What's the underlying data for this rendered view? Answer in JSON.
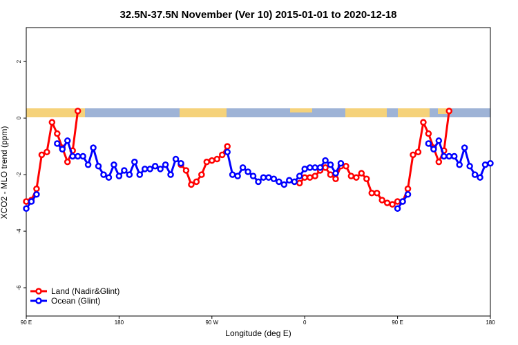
{
  "chart_data": {
    "type": "line",
    "title": "32.5N-37.5N November (Ver 10)   2015-01-01 to 2020-12-18",
    "x_label": "Longitude (deg E)",
    "y_label": "XCO2 - MLO trend (ppm)",
    "x": [
      90,
      95,
      100,
      105,
      110,
      115,
      120,
      125,
      130,
      135,
      140,
      145,
      150,
      155,
      160,
      165,
      170,
      175,
      180,
      185,
      190,
      195,
      200,
      205,
      210,
      215,
      220,
      225,
      230,
      235,
      240,
      245,
      250,
      255,
      260,
      265,
      270,
      275,
      280,
      285,
      290,
      295,
      300,
      305,
      310,
      315,
      320,
      325,
      330,
      335,
      340,
      345,
      350,
      355,
      360,
      365,
      370,
      375,
      380,
      385,
      390,
      395,
      400,
      405,
      410,
      415,
      420,
      425,
      430,
      435,
      440,
      445,
      450,
      455,
      460,
      465,
      470,
      475,
      480,
      485,
      490,
      495,
      500,
      505,
      510,
      515,
      520,
      525,
      530,
      535,
      540
    ],
    "series": [
      {
        "name": "Land (Nadir&Glint)",
        "color": "#ff0000",
        "values": [
          -2.95,
          -2.9,
          -2.5,
          -1.3,
          -1.2,
          -0.15,
          -0.55,
          -1.05,
          -1.55,
          -1.15,
          0.25,
          null,
          null,
          null,
          null,
          null,
          null,
          null,
          null,
          null,
          null,
          null,
          null,
          null,
          null,
          null,
          null,
          null,
          null,
          null,
          -1.65,
          -1.85,
          -2.35,
          -2.25,
          -2.0,
          -1.55,
          -1.5,
          -1.45,
          -1.3,
          -1.0,
          null,
          null,
          null,
          null,
          null,
          null,
          null,
          null,
          null,
          null,
          null,
          null,
          null,
          -2.3,
          -2.1,
          -2.1,
          -2.05,
          -1.85,
          -1.75,
          -2.0,
          -2.15,
          -1.7,
          -1.7,
          -2.05,
          -2.1,
          -1.95,
          -2.15,
          -2.65,
          -2.65,
          -2.9,
          -3.0,
          -3.05,
          -2.95,
          -2.95,
          -2.5,
          -1.3,
          -1.2,
          -0.15,
          -0.55,
          -1.05,
          -1.55,
          -1.15,
          0.25,
          null,
          null,
          null,
          null,
          null,
          null,
          null,
          null
        ]
      },
      {
        "name": "Ocean (Glint)",
        "color": "#0000ff",
        "values": [
          -3.2,
          -2.95,
          -2.7,
          null,
          null,
          null,
          -0.9,
          -1.1,
          -0.8,
          -1.35,
          -1.35,
          -1.35,
          -1.65,
          -1.05,
          -1.7,
          -2.0,
          -2.1,
          -1.65,
          -2.05,
          -1.85,
          -2.0,
          -1.55,
          -2.0,
          -1.8,
          -1.8,
          -1.7,
          -1.8,
          -1.65,
          -2.0,
          -1.45,
          -1.6,
          null,
          null,
          null,
          null,
          null,
          null,
          null,
          null,
          -1.2,
          -2.0,
          -2.05,
          -1.75,
          -1.9,
          -2.05,
          -2.25,
          -2.1,
          -2.1,
          -2.15,
          -2.25,
          -2.35,
          -2.2,
          -2.25,
          -2.05,
          -1.8,
          -1.75,
          -1.75,
          -1.75,
          -1.5,
          -1.65,
          -1.95,
          -1.6,
          null,
          null,
          null,
          null,
          null,
          null,
          null,
          null,
          null,
          null,
          -3.2,
          -2.95,
          -2.7,
          null,
          null,
          null,
          -0.9,
          -1.1,
          -0.8,
          -1.35,
          -1.35,
          -1.35,
          -1.65,
          -1.05,
          -1.7,
          -2.0,
          -2.1,
          -1.65,
          -1.6
        ]
      }
    ],
    "xlim": [
      90,
      540
    ],
    "xticks": [
      {
        "value": 90,
        "label": "90 E"
      },
      180,
      {
        "value": 270,
        "label": "90 W"
      },
      {
        "value": 360,
        "label": "0"
      },
      {
        "value": 450,
        "label": "90 E"
      },
      {
        "value": 540,
        "label": "180"
      }
    ],
    "ylim": [
      -7,
      3.2
    ],
    "yticks": [
      2,
      0,
      -2,
      -4,
      -6
    ],
    "legend": "bottom-left"
  }
}
